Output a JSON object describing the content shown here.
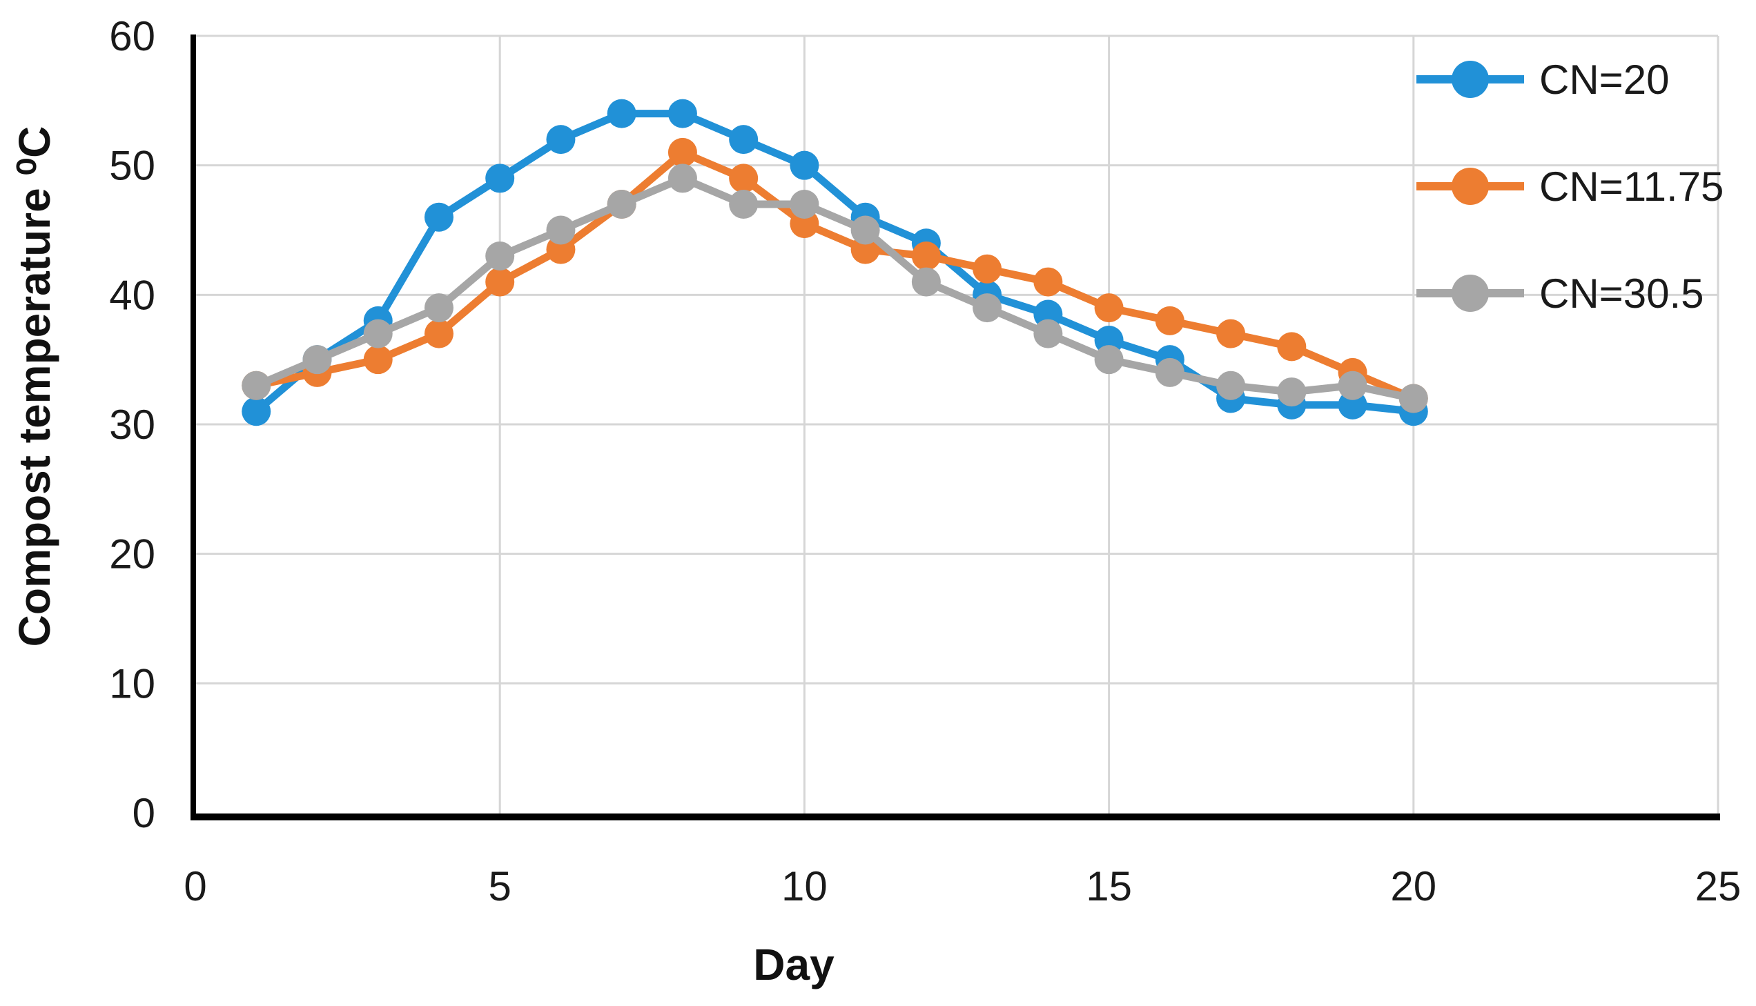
{
  "figure": {
    "background": "#ffffff",
    "text_color": "#1a1a1a",
    "gridline_color": "#d6d6d6",
    "axis_color": "#000000",
    "y_axis_title": "Compost temperature ⁰C",
    "x_axis_title": "Day",
    "legend": [
      {
        "label": "CN=20",
        "color": "#2191d7",
        "marker": "circle-on-line"
      },
      {
        "label": "CN=11.75",
        "color": "#ed7d31",
        "marker": "circle-on-line"
      },
      {
        "label": "CN=30.5",
        "color": "#a6a6a6",
        "marker": "circle-on-line"
      }
    ]
  },
  "chart_data": {
    "type": "line",
    "title": "",
    "xlabel": "Day",
    "ylabel": "Compost temperature ⁰C",
    "x": [
      1,
      2,
      3,
      4,
      5,
      6,
      7,
      8,
      9,
      10,
      11,
      12,
      13,
      14,
      15,
      16,
      17,
      18,
      19,
      20
    ],
    "series": [
      {
        "name": "CN=20",
        "color": "#2191d7",
        "values": [
          31,
          35,
          38,
          46,
          49,
          52,
          54,
          54,
          52,
          50,
          46,
          44,
          40,
          38.5,
          36.5,
          35,
          32,
          31.5,
          31.5,
          31
        ]
      },
      {
        "name": "CN=11.75",
        "color": "#ed7d31",
        "values": [
          33,
          34,
          35,
          37,
          41,
          43.5,
          47,
          51,
          49,
          45.5,
          43.5,
          43,
          42,
          41,
          39,
          38,
          37,
          36,
          34,
          32
        ]
      },
      {
        "name": "CN=30.5",
        "color": "#a6a6a6",
        "values": [
          33,
          35,
          37,
          39,
          43,
          45,
          47,
          49,
          47,
          47,
          45,
          41,
          39,
          37,
          35,
          34,
          33,
          32.5,
          33,
          32
        ]
      }
    ],
    "xlim": [
      0,
      25
    ],
    "ylim": [
      0,
      60
    ],
    "x_ticks": [
      0,
      5,
      10,
      15,
      20,
      25
    ],
    "y_ticks": [
      0,
      10,
      20,
      30,
      40,
      50,
      60
    ],
    "grid": true,
    "legend_position": "top-right-inside",
    "marker_style": "filled-circle"
  }
}
